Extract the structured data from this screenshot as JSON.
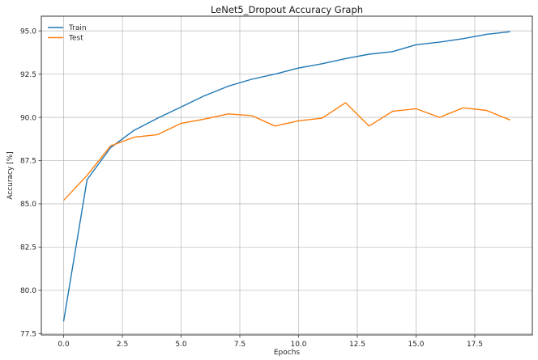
{
  "chart_data": {
    "type": "line",
    "title": "LeNet5_Dropout Accuracy Graph",
    "xlabel": "Epochs",
    "ylabel": "Accuracy [%]",
    "x": [
      0,
      1,
      2,
      3,
      4,
      5,
      6,
      7,
      8,
      9,
      10,
      11,
      12,
      13,
      14,
      15,
      16,
      17,
      18,
      19
    ],
    "series": [
      {
        "name": "Train",
        "color": "#1f77b4",
        "values": [
          78.2,
          86.4,
          88.25,
          89.25,
          89.95,
          90.6,
          91.25,
          91.8,
          92.2,
          92.5,
          92.85,
          93.1,
          93.4,
          93.65,
          93.8,
          94.2,
          94.35,
          94.55,
          94.8,
          94.95
        ]
      },
      {
        "name": "Test",
        "color": "#ff7f0e",
        "values": [
          85.2,
          86.65,
          88.35,
          88.85,
          89.0,
          89.65,
          89.9,
          90.2,
          90.1,
          89.5,
          89.8,
          89.95,
          90.85,
          89.5,
          90.35,
          90.5,
          90.0,
          90.55,
          90.4,
          89.85
        ]
      }
    ],
    "xticks": [
      0.0,
      2.5,
      5.0,
      7.5,
      10.0,
      12.5,
      15.0,
      17.5
    ],
    "xtick_labels": [
      "0.0",
      "2.5",
      "5.0",
      "7.5",
      "10.0",
      "12.5",
      "15.0",
      "17.5"
    ],
    "yticks": [
      77.5,
      80.0,
      82.5,
      85.0,
      87.5,
      90.0,
      92.5,
      95.0
    ],
    "ytick_labels": [
      "77.5",
      "80.0",
      "82.5",
      "85.0",
      "87.5",
      "90.0",
      "92.5",
      "95.0"
    ],
    "xlim": [
      -0.95,
      19.95
    ],
    "ylim": [
      77.42,
      95.85
    ],
    "grid": true,
    "legend_position": "upper left"
  }
}
